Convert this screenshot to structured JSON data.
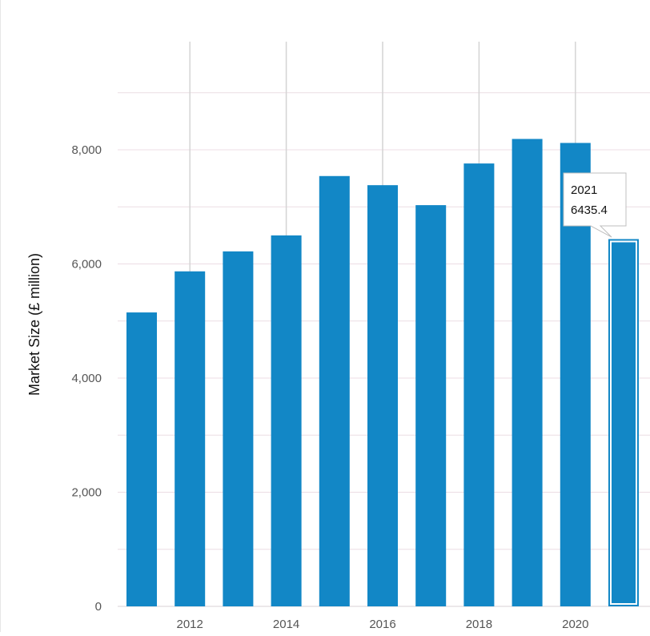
{
  "chart_data": {
    "type": "bar",
    "categories": [
      "2011",
      "2012",
      "2013",
      "2014",
      "2015",
      "2016",
      "2017",
      "2018",
      "2019",
      "2020",
      "2021"
    ],
    "values": [
      5150,
      5870,
      6220,
      6500,
      7540,
      7380,
      7030,
      7760,
      8190,
      8120,
      6435.4
    ],
    "xlabel": "",
    "ylabel": "Market Size (£ million)",
    "ylim": [
      0,
      9000
    ],
    "yticks": [
      0,
      2000,
      4000,
      6000,
      8000
    ],
    "ytick_labels": [
      "0",
      "2,000",
      "4,000",
      "6,000",
      "8,000"
    ],
    "xtick_labels": [
      "2012",
      "2014",
      "2016",
      "2018",
      "2020"
    ],
    "grid": true,
    "bar_color": "#1287C6",
    "highlighted": {
      "category": "2021",
      "value_label": "6435.4"
    }
  }
}
